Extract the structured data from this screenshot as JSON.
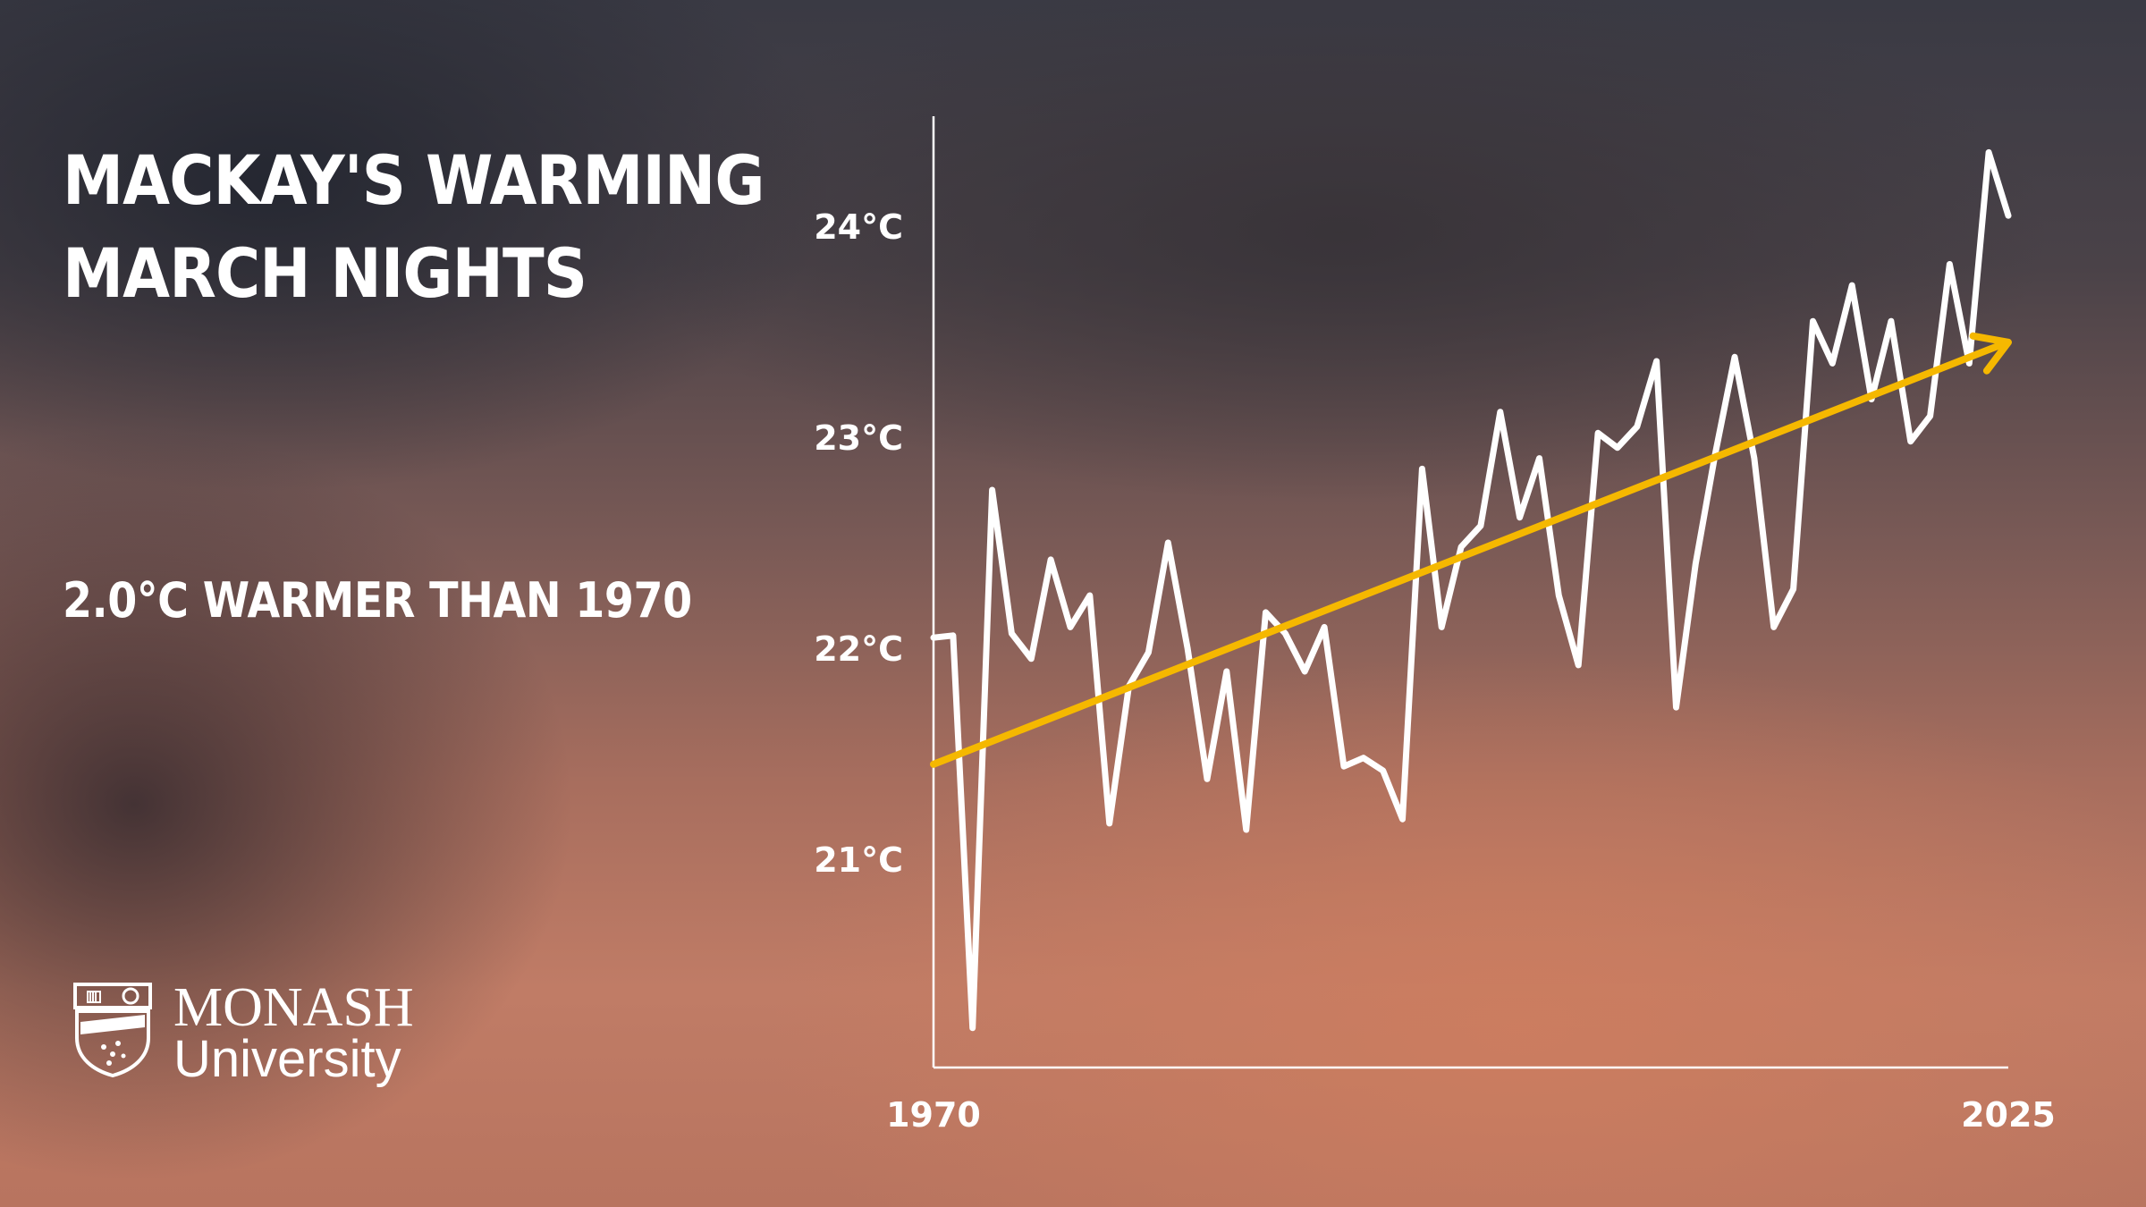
{
  "heading": {
    "title": "MACKAY'S WARMING\nMARCH NIGHTS",
    "subtitle": "2.0°C WARMER THAN 1970"
  },
  "logo": {
    "line1": "MONASH",
    "line2": "University"
  },
  "colors": {
    "line": "#ffffff",
    "trend": "#f5b800",
    "axis": "#ffffff"
  },
  "chart_data": {
    "type": "line",
    "title": "MACKAY'S WARMING MARCH NIGHTS",
    "subtitle": "2.0°C WARMER THAN 1970",
    "xlabel": "",
    "ylabel": "",
    "xlim": [
      1970,
      2025
    ],
    "ylim": [
      20.0,
      24.5
    ],
    "x_tick_labels": [
      {
        "value": 1970,
        "label": "1970"
      },
      {
        "value": 2025,
        "label": "2025"
      }
    ],
    "y_tick_labels": [
      {
        "value": 21,
        "label": "21°C"
      },
      {
        "value": 22,
        "label": "22°C"
      },
      {
        "value": 23,
        "label": "23°C"
      },
      {
        "value": 24,
        "label": "24°C"
      }
    ],
    "grid": false,
    "legend": "none",
    "series": [
      {
        "values": [
          {
            "x": 1970,
            "y": 22.05
          },
          {
            "x": 1971,
            "y": 22.06
          },
          {
            "x": 1972,
            "y": 20.2
          },
          {
            "x": 1973,
            "y": 22.75
          },
          {
            "x": 1974,
            "y": 22.07
          },
          {
            "x": 1975,
            "y": 21.95
          },
          {
            "x": 1976,
            "y": 22.42
          },
          {
            "x": 1977,
            "y": 22.1
          },
          {
            "x": 1978,
            "y": 22.25
          },
          {
            "x": 1979,
            "y": 21.17
          },
          {
            "x": 1980,
            "y": 21.82
          },
          {
            "x": 1981,
            "y": 21.98
          },
          {
            "x": 1982,
            "y": 22.5
          },
          {
            "x": 1983,
            "y": 22.0
          },
          {
            "x": 1984,
            "y": 21.38
          },
          {
            "x": 1985,
            "y": 21.89
          },
          {
            "x": 1986,
            "y": 21.14
          },
          {
            "x": 1987,
            "y": 22.17
          },
          {
            "x": 1988,
            "y": 22.07
          },
          {
            "x": 1989,
            "y": 21.89
          },
          {
            "x": 1990,
            "y": 22.1
          },
          {
            "x": 1991,
            "y": 21.44
          },
          {
            "x": 1992,
            "y": 21.48
          },
          {
            "x": 1993,
            "y": 21.42
          },
          {
            "x": 1994,
            "y": 21.19
          },
          {
            "x": 1995,
            "y": 22.85
          },
          {
            "x": 1996,
            "y": 22.1
          },
          {
            "x": 1997,
            "y": 22.48
          },
          {
            "x": 1998,
            "y": 22.58
          },
          {
            "x": 1999,
            "y": 23.12
          },
          {
            "x": 2000,
            "y": 22.62
          },
          {
            "x": 2001,
            "y": 22.9
          },
          {
            "x": 2002,
            "y": 22.25
          },
          {
            "x": 2003,
            "y": 21.92
          },
          {
            "x": 2004,
            "y": 23.02
          },
          {
            "x": 2005,
            "y": 22.95
          },
          {
            "x": 2006,
            "y": 23.05
          },
          {
            "x": 2007,
            "y": 23.36
          },
          {
            "x": 2008,
            "y": 21.72
          },
          {
            "x": 2009,
            "y": 22.4
          },
          {
            "x": 2010,
            "y": 22.92
          },
          {
            "x": 2011,
            "y": 23.38
          },
          {
            "x": 2012,
            "y": 22.9
          },
          {
            "x": 2013,
            "y": 22.1
          },
          {
            "x": 2014,
            "y": 22.28
          },
          {
            "x": 2015,
            "y": 23.55
          },
          {
            "x": 2016,
            "y": 23.35
          },
          {
            "x": 2017,
            "y": 23.72
          },
          {
            "x": 2018,
            "y": 23.18
          },
          {
            "x": 2019,
            "y": 23.55
          },
          {
            "x": 2020,
            "y": 22.98
          },
          {
            "x": 2021,
            "y": 23.1
          },
          {
            "x": 2022,
            "y": 23.82
          },
          {
            "x": 2023,
            "y": 23.35
          },
          {
            "x": 2024,
            "y": 24.35
          },
          {
            "x": 2025,
            "y": 24.05
          }
        ]
      }
    ],
    "trend": {
      "type": "arrow",
      "start": {
        "x": 1970,
        "y": 21.45
      },
      "end": {
        "x": 2025,
        "y": 23.45
      }
    }
  }
}
